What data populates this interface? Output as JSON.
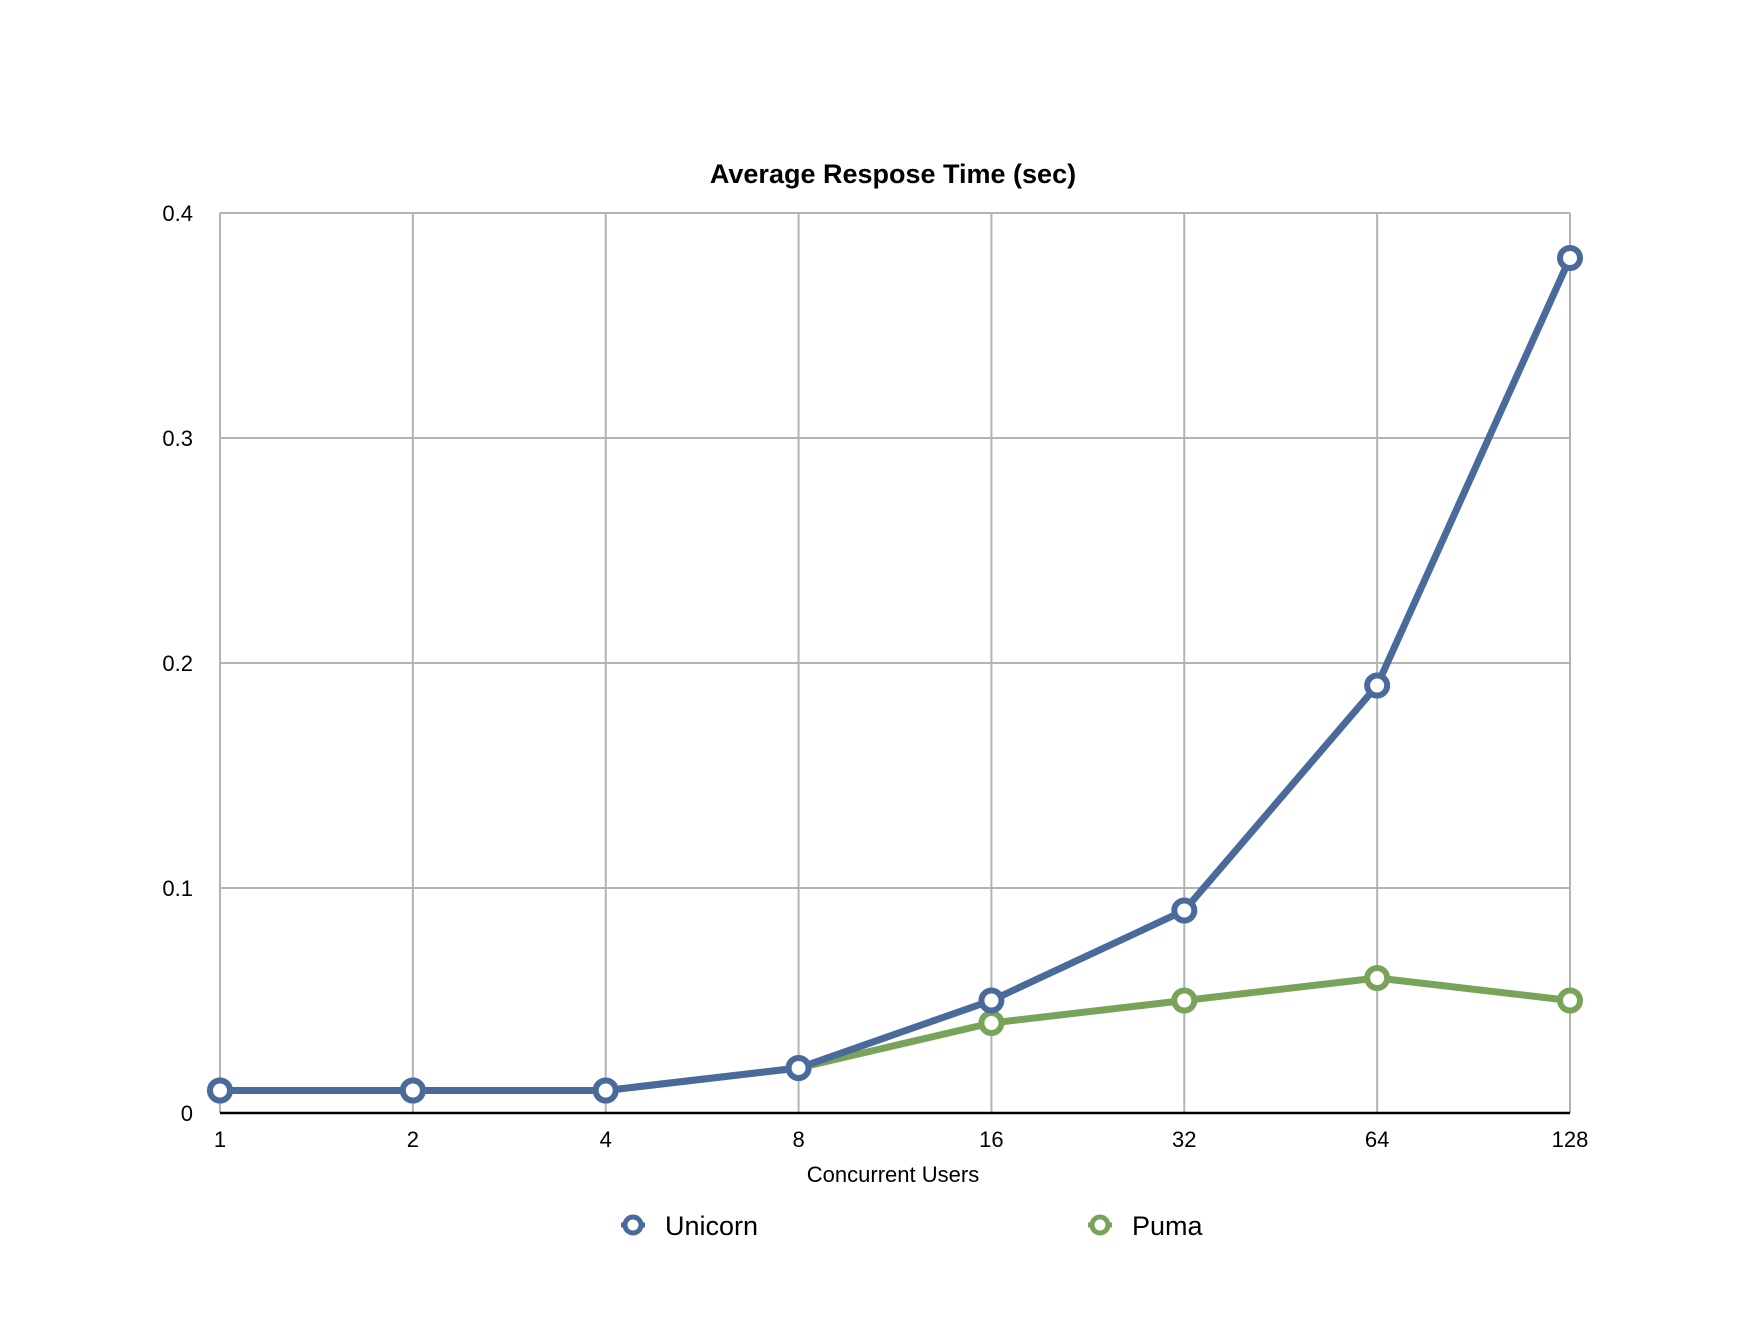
{
  "chart_data": {
    "type": "line",
    "title": "Average Respose Time (sec)",
    "xlabel": "Concurrent Users",
    "ylabel": "",
    "categories": [
      "1",
      "2",
      "4",
      "8",
      "16",
      "32",
      "64",
      "128"
    ],
    "yticks": [
      "0",
      "0.1",
      "0.2",
      "0.3",
      "0.4"
    ],
    "ylim": [
      0,
      0.4
    ],
    "grid": true,
    "legend_position": "bottom",
    "series": [
      {
        "name": "Unicorn",
        "color": "#4a6a9b",
        "values": [
          0.01,
          0.01,
          0.01,
          0.02,
          0.05,
          0.09,
          0.19,
          0.38
        ]
      },
      {
        "name": "Puma",
        "color": "#7aa35a",
        "values": [
          0.01,
          0.01,
          0.01,
          0.02,
          0.04,
          0.05,
          0.06,
          0.05
        ]
      }
    ]
  }
}
